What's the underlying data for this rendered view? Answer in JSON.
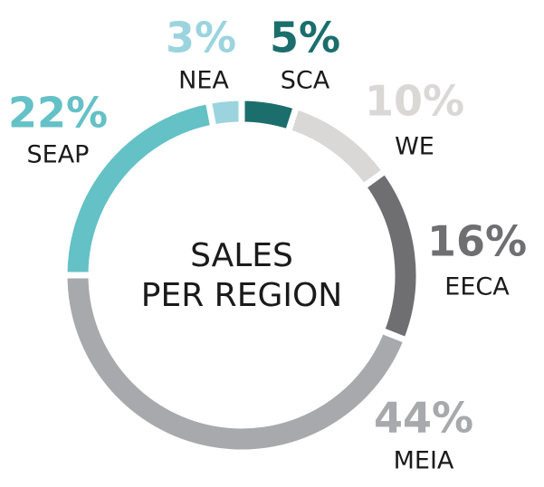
{
  "chart_data": {
    "type": "donut",
    "title_lines": [
      "SALES",
      "PER REGION"
    ],
    "categories": [
      "SCA",
      "WE",
      "EECA",
      "MEIA",
      "SEAP",
      "NEA"
    ],
    "values": [
      5,
      10,
      16,
      44,
      22,
      3
    ],
    "value_labels": [
      "5%",
      "10%",
      "16%",
      "44%",
      "22%",
      "3%"
    ],
    "colors": [
      "#1c6e6c",
      "#dad7d7",
      "#6f6e70",
      "#a8a9ac",
      "#64c1c6",
      "#9bd4de"
    ]
  }
}
